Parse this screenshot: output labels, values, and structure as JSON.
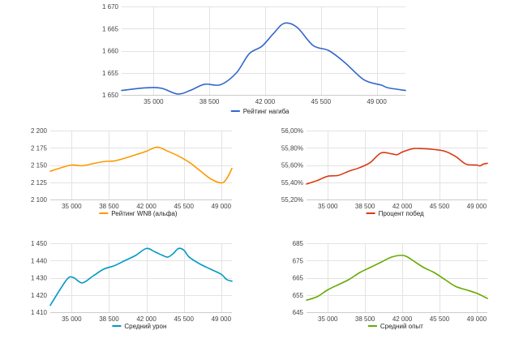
{
  "chart_data": [
    {
      "type": "line",
      "xticks": [
        "35 000",
        "38 500",
        "42 000",
        "45 500",
        "49 000"
      ],
      "xtick_values": [
        35000,
        38500,
        42000,
        45500,
        49000
      ],
      "xlim": [
        33000,
        50800
      ],
      "yticks": [
        "1 650",
        "1 655",
        "1 660",
        "1 665",
        "1 670"
      ],
      "ytick_values": [
        1650,
        1655,
        1660,
        1665,
        1670
      ],
      "ylim": [
        1650,
        1670
      ],
      "legend_position": "bottom",
      "grid": true,
      "series": [
        {
          "name": "Рейтинг нагиба",
          "color": "#3366cc",
          "x": [
            33000,
            34500,
            35500,
            36500,
            37300,
            38200,
            39200,
            40200,
            41000,
            41800,
            42500,
            43200,
            44000,
            45000,
            46000,
            47000,
            48200,
            49300,
            49700,
            50800
          ],
          "y": [
            1651.0,
            1651.6,
            1651.5,
            1650.2,
            1651.0,
            1652.4,
            1652.3,
            1655.0,
            1659.3,
            1661.0,
            1663.8,
            1666.2,
            1665.3,
            1661.2,
            1660.0,
            1657.3,
            1653.4,
            1652.2,
            1651.6,
            1651.0
          ]
        }
      ]
    },
    {
      "type": "line",
      "xticks": [
        "35 000",
        "38 500",
        "42 000",
        "45 500",
        "49 000"
      ],
      "xtick_values": [
        35000,
        38500,
        42000,
        45500,
        49000
      ],
      "xlim": [
        33000,
        50000
      ],
      "yticks": [
        "2 100",
        "2 125",
        "2 150",
        "2 175",
        "2 200"
      ],
      "ytick_values": [
        2100,
        2125,
        2150,
        2175,
        2200
      ],
      "ylim": [
        2100,
        2200
      ],
      "legend_position": "bottom",
      "grid": true,
      "series": [
        {
          "name": "Рейтинг WN8 (альфа)",
          "color": "#ff9900",
          "x": [
            33000,
            34000,
            35000,
            36000,
            37000,
            38000,
            39000,
            40000,
            41000,
            42000,
            43000,
            44000,
            45000,
            46000,
            47000,
            48000,
            49000,
            49500,
            50000
          ],
          "y": [
            2141,
            2146,
            2150,
            2149,
            2152,
            2155,
            2156,
            2160,
            2165,
            2170,
            2176,
            2170,
            2163,
            2154,
            2142,
            2130,
            2124,
            2130,
            2145
          ]
        }
      ]
    },
    {
      "type": "line",
      "xticks": [
        "35 000",
        "38 500",
        "42 000",
        "45 500",
        "49 000"
      ],
      "xtick_values": [
        35000,
        38500,
        42000,
        45500,
        49000
      ],
      "xlim": [
        33000,
        50000
      ],
      "yticks": [
        "55,20%",
        "55,40%",
        "55,60%",
        "55,80%",
        "56,00%"
      ],
      "ytick_values": [
        55.2,
        55.4,
        55.6,
        55.8,
        56.0
      ],
      "ylim": [
        55.2,
        56.0
      ],
      "legend_position": "bottom",
      "grid": true,
      "series": [
        {
          "name": "Процент побед",
          "color": "#dc3912",
          "x": [
            33000,
            34000,
            35000,
            36000,
            37000,
            38000,
            39000,
            40000,
            41000,
            41500,
            42000,
            43000,
            44000,
            45000,
            46000,
            47000,
            48000,
            49000,
            49300,
            49600,
            50000
          ],
          "y": [
            55.38,
            55.42,
            55.47,
            55.48,
            55.53,
            55.57,
            55.63,
            55.74,
            55.73,
            55.72,
            55.75,
            55.79,
            55.79,
            55.78,
            55.76,
            55.7,
            55.61,
            55.6,
            55.59,
            55.61,
            55.62
          ]
        }
      ]
    },
    {
      "type": "line",
      "xticks": [
        "35 000",
        "38 500",
        "42 000",
        "45 500",
        "49 000"
      ],
      "xtick_values": [
        35000,
        38500,
        42000,
        45500,
        49000
      ],
      "xlim": [
        33000,
        50000
      ],
      "yticks": [
        "1 410",
        "1 420",
        "1 430",
        "1 440",
        "1 450"
      ],
      "ytick_values": [
        1410,
        1420,
        1430,
        1440,
        1450
      ],
      "ylim": [
        1410,
        1450
      ],
      "legend_position": "bottom",
      "grid": true,
      "series": [
        {
          "name": "Средний урон",
          "color": "#0099c6",
          "x": [
            33000,
            34000,
            34700,
            35200,
            36000,
            37000,
            38000,
            39000,
            40000,
            41000,
            42000,
            42800,
            43500,
            44000,
            44500,
            45000,
            45500,
            46000,
            47000,
            48000,
            49000,
            49500,
            50000
          ],
          "y": [
            1414,
            1424,
            1430,
            1430,
            1427,
            1431,
            1435,
            1437,
            1440,
            1443,
            1447,
            1445,
            1443,
            1442,
            1444,
            1447,
            1446,
            1442,
            1438,
            1435,
            1432,
            1429,
            1428
          ]
        }
      ]
    },
    {
      "type": "line",
      "xticks": [
        "35 000",
        "38 500",
        "42 000",
        "45 500",
        "49 000"
      ],
      "xtick_values": [
        35000,
        38500,
        42000,
        45500,
        49000
      ],
      "xlim": [
        33000,
        50000
      ],
      "yticks": [
        "645",
        "655",
        "665",
        "675",
        "685"
      ],
      "ytick_values": [
        645,
        655,
        665,
        675,
        685
      ],
      "ylim": [
        645,
        685
      ],
      "legend_position": "bottom",
      "grid": true,
      "series": [
        {
          "name": "Средний опыт",
          "color": "#66aa00",
          "x": [
            33000,
            34000,
            35000,
            36000,
            37000,
            38000,
            39000,
            40000,
            41000,
            42000,
            42500,
            43000,
            44000,
            45000,
            46000,
            47000,
            48000,
            49000,
            50000
          ],
          "y": [
            652,
            654,
            658,
            661,
            664,
            668,
            671,
            674,
            677,
            678,
            677,
            675,
            671,
            668,
            664,
            660,
            658,
            656,
            653
          ]
        }
      ]
    }
  ]
}
